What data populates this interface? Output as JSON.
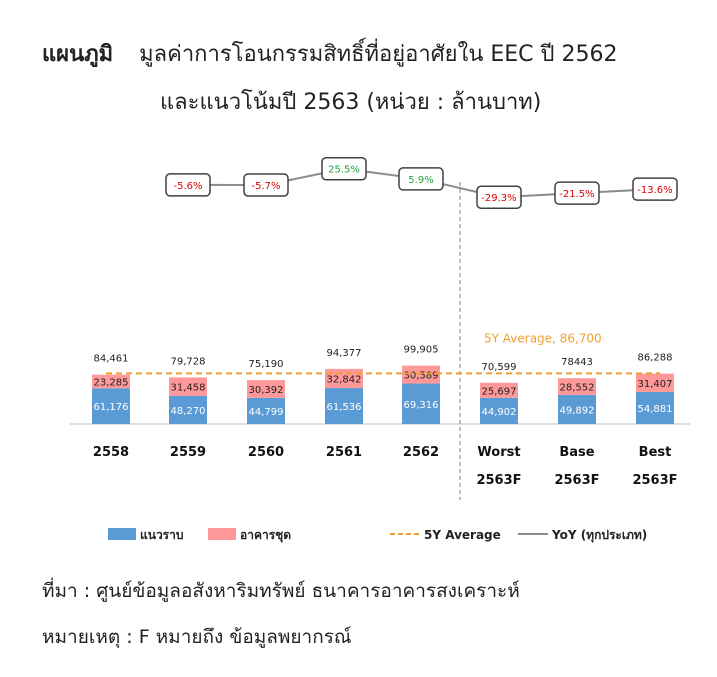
{
  "title": {
    "label": "แผนภูมิ",
    "line1": "มูลค่าการโอนกรรมสิทธิ์ที่อยู่อาศัยใน EEC ปี 2562",
    "line2": "และแนวโน้มปี 2563 (หน่วย : ล้านบาท)"
  },
  "chart_data": {
    "type": "bar",
    "categories": [
      "2558",
      "2559",
      "2560",
      "2561",
      "2562",
      "Worst",
      "Base",
      "Best"
    ],
    "category_sublabels": [
      "",
      "",
      "",
      "",
      "",
      "2563F",
      "2563F",
      "2563F"
    ],
    "series": [
      {
        "name": "แนวราบ",
        "color": "#5b9bd5",
        "values": [
          61176,
          48270,
          44799,
          61536,
          69316,
          44902,
          49892,
          54881
        ]
      },
      {
        "name": "อาคารชุด",
        "color": "#ff9999",
        "values": [
          23285,
          31458,
          30392,
          32842,
          30589,
          25697,
          28552,
          31407
        ]
      }
    ],
    "segment_labels": {
      "แนวราบ": [
        "61,176",
        "48,270",
        "44,799",
        "61,536",
        "69,316",
        "44,902",
        "49,892",
        "54,881"
      ],
      "อาคารชุด": [
        "23,285",
        "31,458",
        "30,392",
        "32,842",
        "30,589",
        "25,697",
        "28,552",
        "31,407"
      ]
    },
    "totals": [
      84461,
      79728,
      75190,
      94377,
      99905,
      70599,
      78443,
      86288
    ],
    "total_labels": [
      "84,461",
      "79,728",
      "75,190",
      "94,377",
      "99,905",
      "70,599",
      "78443",
      "86,288"
    ],
    "average": {
      "name": "5Y Average",
      "value": 86700,
      "label": "5Y Average,  86,700",
      "color": "#f0a030"
    },
    "yoy": {
      "name": "YoY (ทุกประเภท)",
      "values": [
        -5.6,
        -5.7,
        25.5,
        5.9,
        -29.3,
        -21.5,
        -13.6
      ],
      "labels": [
        "-5.6%",
        "-5.7%",
        "25.5%",
        "5.9%",
        "-29.3%",
        "-21.5%",
        "-13.6%"
      ],
      "colors": [
        "#e00000",
        "#e00000",
        "#21a038",
        "#21a038",
        "#e00000",
        "#e00000",
        "#e00000"
      ],
      "line_color": "#8c8c8c"
    },
    "legend": [
      {
        "name": "แนวราบ",
        "kind": "box",
        "color": "#5b9bd5"
      },
      {
        "name": "อาคารชุด",
        "kind": "box",
        "color": "#ff9999"
      },
      {
        "name": "5Y Average",
        "kind": "dash",
        "color": "#f0a030"
      },
      {
        "name": "YoY (ทุกประเภท)",
        "kind": "line",
        "color": "#8c8c8c"
      }
    ],
    "legend_position": "bottom"
  },
  "notes": {
    "source": "ที่มา : ศูนย์ข้อมูลอสังหาริมทรัพย์ ธนาคารอาคารสงเคราะห์",
    "remark": "หมายเหตุ : F หมายถึง ข้อมูลพยากรณ์"
  }
}
